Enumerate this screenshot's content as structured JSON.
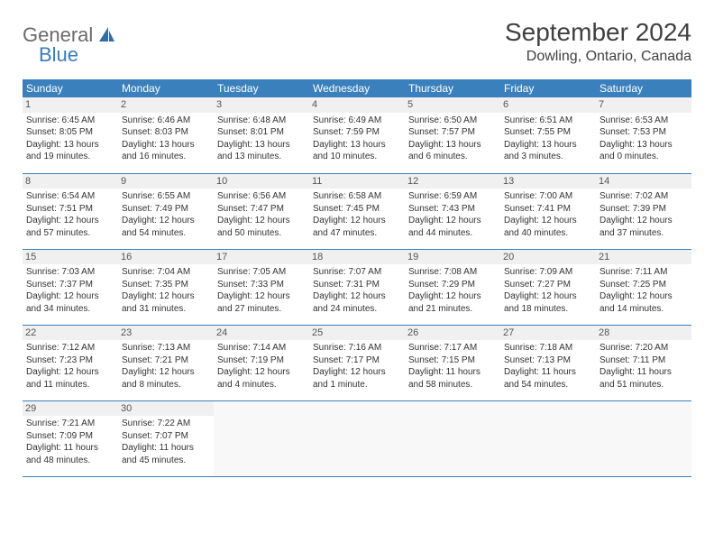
{
  "logo": {
    "textGeneral": "General",
    "textBlue": "Blue"
  },
  "header": {
    "title": "September 2024",
    "location": "Dowling, Ontario, Canada"
  },
  "dayNames": [
    "Sunday",
    "Monday",
    "Tuesday",
    "Wednesday",
    "Thursday",
    "Friday",
    "Saturday"
  ],
  "colors": {
    "headerBg": "#3a80bd",
    "headerText": "#ffffff",
    "dayNumberBg": "#f0f0f0",
    "borderColor": "#3a80bd",
    "bodyText": "#333333",
    "logoGray": "#6a6a6a",
    "logoBlue": "#3a7ab8"
  },
  "typography": {
    "titleFontSize": 28,
    "locationFontSize": 16,
    "dayHeaderFontSize": 12,
    "cellFontSize": 10
  },
  "weeks": [
    [
      {
        "n": "1",
        "sr": "Sunrise: 6:45 AM",
        "ss": "Sunset: 8:05 PM",
        "d1": "Daylight: 13 hours",
        "d2": "and 19 minutes."
      },
      {
        "n": "2",
        "sr": "Sunrise: 6:46 AM",
        "ss": "Sunset: 8:03 PM",
        "d1": "Daylight: 13 hours",
        "d2": "and 16 minutes."
      },
      {
        "n": "3",
        "sr": "Sunrise: 6:48 AM",
        "ss": "Sunset: 8:01 PM",
        "d1": "Daylight: 13 hours",
        "d2": "and 13 minutes."
      },
      {
        "n": "4",
        "sr": "Sunrise: 6:49 AM",
        "ss": "Sunset: 7:59 PM",
        "d1": "Daylight: 13 hours",
        "d2": "and 10 minutes."
      },
      {
        "n": "5",
        "sr": "Sunrise: 6:50 AM",
        "ss": "Sunset: 7:57 PM",
        "d1": "Daylight: 13 hours",
        "d2": "and 6 minutes."
      },
      {
        "n": "6",
        "sr": "Sunrise: 6:51 AM",
        "ss": "Sunset: 7:55 PM",
        "d1": "Daylight: 13 hours",
        "d2": "and 3 minutes."
      },
      {
        "n": "7",
        "sr": "Sunrise: 6:53 AM",
        "ss": "Sunset: 7:53 PM",
        "d1": "Daylight: 13 hours",
        "d2": "and 0 minutes."
      }
    ],
    [
      {
        "n": "8",
        "sr": "Sunrise: 6:54 AM",
        "ss": "Sunset: 7:51 PM",
        "d1": "Daylight: 12 hours",
        "d2": "and 57 minutes."
      },
      {
        "n": "9",
        "sr": "Sunrise: 6:55 AM",
        "ss": "Sunset: 7:49 PM",
        "d1": "Daylight: 12 hours",
        "d2": "and 54 minutes."
      },
      {
        "n": "10",
        "sr": "Sunrise: 6:56 AM",
        "ss": "Sunset: 7:47 PM",
        "d1": "Daylight: 12 hours",
        "d2": "and 50 minutes."
      },
      {
        "n": "11",
        "sr": "Sunrise: 6:58 AM",
        "ss": "Sunset: 7:45 PM",
        "d1": "Daylight: 12 hours",
        "d2": "and 47 minutes."
      },
      {
        "n": "12",
        "sr": "Sunrise: 6:59 AM",
        "ss": "Sunset: 7:43 PM",
        "d1": "Daylight: 12 hours",
        "d2": "and 44 minutes."
      },
      {
        "n": "13",
        "sr": "Sunrise: 7:00 AM",
        "ss": "Sunset: 7:41 PM",
        "d1": "Daylight: 12 hours",
        "d2": "and 40 minutes."
      },
      {
        "n": "14",
        "sr": "Sunrise: 7:02 AM",
        "ss": "Sunset: 7:39 PM",
        "d1": "Daylight: 12 hours",
        "d2": "and 37 minutes."
      }
    ],
    [
      {
        "n": "15",
        "sr": "Sunrise: 7:03 AM",
        "ss": "Sunset: 7:37 PM",
        "d1": "Daylight: 12 hours",
        "d2": "and 34 minutes."
      },
      {
        "n": "16",
        "sr": "Sunrise: 7:04 AM",
        "ss": "Sunset: 7:35 PM",
        "d1": "Daylight: 12 hours",
        "d2": "and 31 minutes."
      },
      {
        "n": "17",
        "sr": "Sunrise: 7:05 AM",
        "ss": "Sunset: 7:33 PM",
        "d1": "Daylight: 12 hours",
        "d2": "and 27 minutes."
      },
      {
        "n": "18",
        "sr": "Sunrise: 7:07 AM",
        "ss": "Sunset: 7:31 PM",
        "d1": "Daylight: 12 hours",
        "d2": "and 24 minutes."
      },
      {
        "n": "19",
        "sr": "Sunrise: 7:08 AM",
        "ss": "Sunset: 7:29 PM",
        "d1": "Daylight: 12 hours",
        "d2": "and 21 minutes."
      },
      {
        "n": "20",
        "sr": "Sunrise: 7:09 AM",
        "ss": "Sunset: 7:27 PM",
        "d1": "Daylight: 12 hours",
        "d2": "and 18 minutes."
      },
      {
        "n": "21",
        "sr": "Sunrise: 7:11 AM",
        "ss": "Sunset: 7:25 PM",
        "d1": "Daylight: 12 hours",
        "d2": "and 14 minutes."
      }
    ],
    [
      {
        "n": "22",
        "sr": "Sunrise: 7:12 AM",
        "ss": "Sunset: 7:23 PM",
        "d1": "Daylight: 12 hours",
        "d2": "and 11 minutes."
      },
      {
        "n": "23",
        "sr": "Sunrise: 7:13 AM",
        "ss": "Sunset: 7:21 PM",
        "d1": "Daylight: 12 hours",
        "d2": "and 8 minutes."
      },
      {
        "n": "24",
        "sr": "Sunrise: 7:14 AM",
        "ss": "Sunset: 7:19 PM",
        "d1": "Daylight: 12 hours",
        "d2": "and 4 minutes."
      },
      {
        "n": "25",
        "sr": "Sunrise: 7:16 AM",
        "ss": "Sunset: 7:17 PM",
        "d1": "Daylight: 12 hours",
        "d2": "and 1 minute."
      },
      {
        "n": "26",
        "sr": "Sunrise: 7:17 AM",
        "ss": "Sunset: 7:15 PM",
        "d1": "Daylight: 11 hours",
        "d2": "and 58 minutes."
      },
      {
        "n": "27",
        "sr": "Sunrise: 7:18 AM",
        "ss": "Sunset: 7:13 PM",
        "d1": "Daylight: 11 hours",
        "d2": "and 54 minutes."
      },
      {
        "n": "28",
        "sr": "Sunrise: 7:20 AM",
        "ss": "Sunset: 7:11 PM",
        "d1": "Daylight: 11 hours",
        "d2": "and 51 minutes."
      }
    ],
    [
      {
        "n": "29",
        "sr": "Sunrise: 7:21 AM",
        "ss": "Sunset: 7:09 PM",
        "d1": "Daylight: 11 hours",
        "d2": "and 48 minutes."
      },
      {
        "n": "30",
        "sr": "Sunrise: 7:22 AM",
        "ss": "Sunset: 7:07 PM",
        "d1": "Daylight: 11 hours",
        "d2": "and 45 minutes."
      },
      null,
      null,
      null,
      null,
      null
    ]
  ]
}
